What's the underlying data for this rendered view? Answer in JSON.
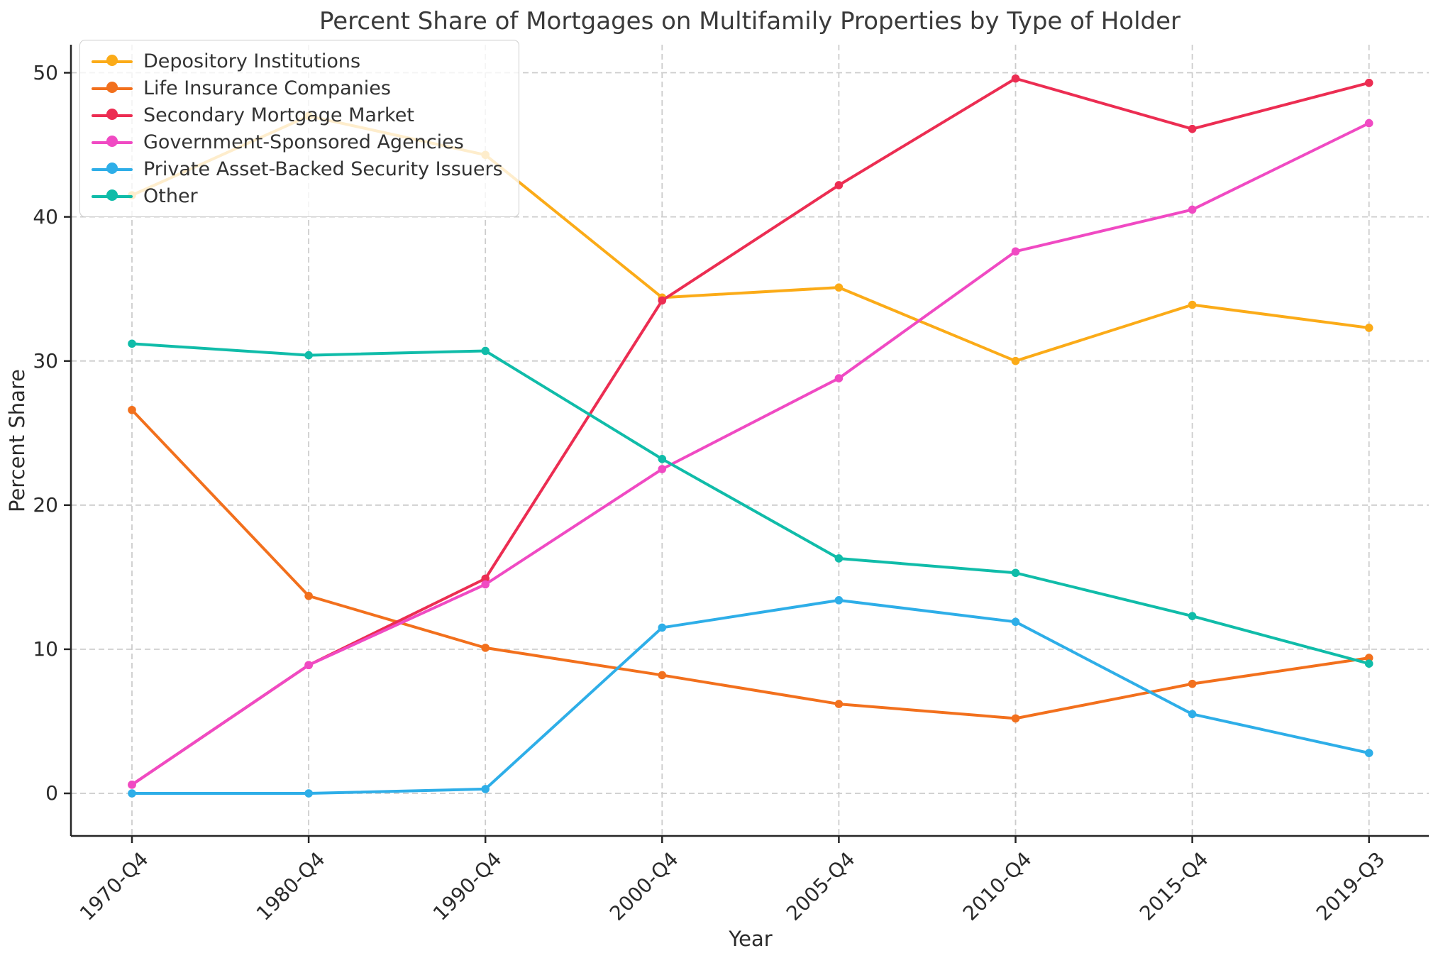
{
  "title": "Percent Share of Mortgages on Multifamily Properties by Type of Holder",
  "x_axis_label": "Year",
  "y_axis_label": "Percent Share",
  "y_ticks": [
    0,
    10,
    20,
    30,
    40,
    50
  ],
  "colors": {
    "grid": "#cccccc",
    "spine": "#262626",
    "tick_text": "#2b2b2b",
    "title_text": "#3a3a3a"
  },
  "chart_data": {
    "type": "line",
    "title": "Percent Share of Mortgages on Multifamily Properties by Type of Holder",
    "xlabel": "Year",
    "ylabel": "Percent Share",
    "categories": [
      "1970-Q4",
      "1980-Q4",
      "1990-Q4",
      "2000-Q4",
      "2005-Q4",
      "2010-Q4",
      "2015-Q4",
      "2019-Q3"
    ],
    "series": [
      {
        "name": "Depository Institutions",
        "color": "#FBAB18",
        "values": [
          41.5,
          47.0,
          44.3,
          34.4,
          35.1,
          30.0,
          33.9,
          32.3
        ]
      },
      {
        "name": "Life Insurance Companies",
        "color": "#F2701D",
        "values": [
          26.6,
          13.7,
          10.1,
          8.2,
          6.2,
          5.2,
          7.6,
          9.4
        ]
      },
      {
        "name": "Secondary Mortgage Market",
        "color": "#EC2D52",
        "values": [
          0.6,
          8.9,
          14.9,
          34.2,
          42.2,
          49.6,
          46.1,
          49.3
        ]
      },
      {
        "name": "Government-Sponsored Agencies",
        "color": "#F04AC3",
        "values": [
          0.6,
          8.9,
          14.5,
          22.5,
          28.8,
          37.6,
          40.5,
          46.5
        ]
      },
      {
        "name": "Private Asset-Backed Security Issuers",
        "color": "#2EAEE8",
        "values": [
          0.0,
          0.0,
          0.3,
          11.5,
          13.4,
          11.9,
          5.5,
          2.8
        ]
      },
      {
        "name": "Other",
        "color": "#10BCA9",
        "values": [
          31.2,
          30.4,
          30.7,
          23.2,
          16.3,
          15.3,
          12.3,
          9.0
        ]
      }
    ],
    "ylim": [
      -2.9,
      52.2
    ],
    "grid": true,
    "grid_style": "dashed",
    "legend_position": "upper left"
  }
}
